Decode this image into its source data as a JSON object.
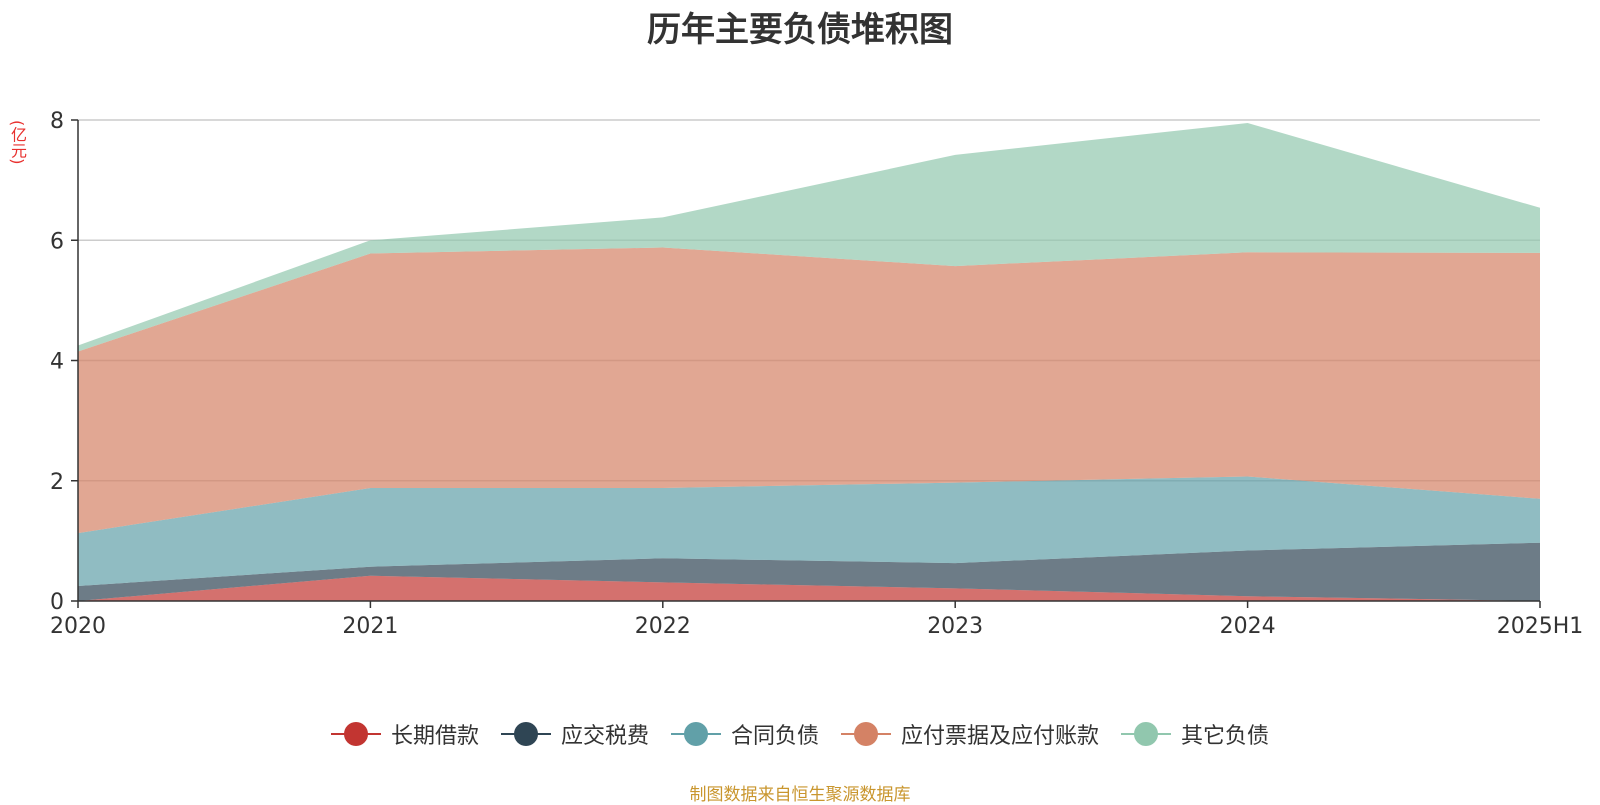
{
  "chart_data": {
    "type": "area",
    "stacked": true,
    "title": "历年主要负债堆积图",
    "unit_label": "(亿元)",
    "x": [
      "2020",
      "2021",
      "2022",
      "2023",
      "2024",
      "2025H1"
    ],
    "ylim": [
      0,
      8
    ],
    "yticks": [
      0,
      2,
      4,
      6,
      8
    ],
    "grid": true,
    "legend_position": "bottom",
    "series": [
      {
        "name": "长期借款",
        "values": [
          0.0,
          0.42,
          0.31,
          0.21,
          0.08,
          0.0
        ],
        "color": "#c23531"
      },
      {
        "name": "应交税费",
        "values": [
          0.25,
          0.15,
          0.4,
          0.42,
          0.76,
          0.97
        ],
        "color": "#2f4554"
      },
      {
        "name": "合同负债",
        "values": [
          0.88,
          1.31,
          1.17,
          1.34,
          1.23,
          0.73
        ],
        "color": "#61a0a8"
      },
      {
        "name": "应付票据及应付账款",
        "values": [
          3.02,
          3.9,
          4.0,
          3.6,
          3.73,
          4.09
        ],
        "color": "#d48265"
      },
      {
        "name": "其它负债",
        "values": [
          0.1,
          0.22,
          0.5,
          1.85,
          2.15,
          0.75
        ],
        "color": "#91c7ae"
      }
    ]
  },
  "source_text": "制图数据来自恒生聚源数据库"
}
